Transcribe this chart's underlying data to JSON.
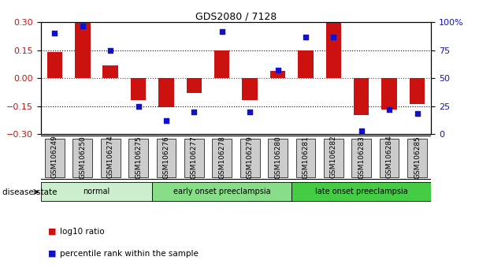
{
  "title": "GDS2080 / 7128",
  "samples": [
    "GSM106249",
    "GSM106250",
    "GSM106274",
    "GSM106275",
    "GSM106276",
    "GSM106277",
    "GSM106278",
    "GSM106279",
    "GSM106280",
    "GSM106281",
    "GSM106282",
    "GSM106283",
    "GSM106284",
    "GSM106285"
  ],
  "log10_ratio": [
    0.14,
    0.3,
    0.07,
    -0.12,
    -0.155,
    -0.08,
    0.15,
    -0.12,
    0.04,
    0.15,
    0.3,
    -0.2,
    -0.17,
    -0.14
  ],
  "percentile_rank": [
    90,
    97,
    75,
    25,
    12,
    20,
    92,
    20,
    57,
    87,
    87,
    3,
    22,
    18
  ],
  "bar_color": "#cc1111",
  "dot_color": "#1111cc",
  "ylim_left": [
    -0.3,
    0.3
  ],
  "ylim_right": [
    0,
    100
  ],
  "yticks_left": [
    -0.3,
    -0.15,
    0,
    0.15,
    0.3
  ],
  "yticks_right": [
    0,
    25,
    50,
    75,
    100
  ],
  "ytick_labels_right": [
    "0",
    "25",
    "50",
    "75",
    "100%"
  ],
  "disease_groups": [
    {
      "label": "normal",
      "start": 0,
      "end": 3,
      "color": "#cceecc"
    },
    {
      "label": "early onset preeclampsia",
      "start": 4,
      "end": 8,
      "color": "#88dd88"
    },
    {
      "label": "late onset preeclampsia",
      "start": 9,
      "end": 13,
      "color": "#44cc44"
    }
  ],
  "legend_items": [
    {
      "label": "log10 ratio",
      "color": "#cc1111"
    },
    {
      "label": "percentile rank within the sample",
      "color": "#1111cc"
    }
  ],
  "disease_state_label": "disease state",
  "background_color": "#ffffff",
  "tick_area_color": "#cccccc"
}
